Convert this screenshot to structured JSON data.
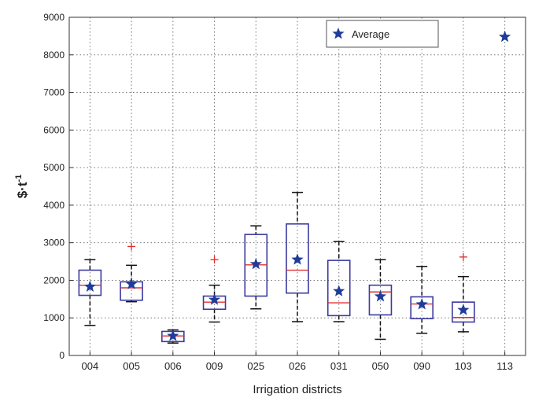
{
  "chart_data": {
    "type": "boxplot",
    "xlabel": "Irrigation districts",
    "ylabel": "$·t",
    "ylabel_superscript": "-1",
    "ylim": [
      0,
      9000
    ],
    "yticks": [
      0,
      1000,
      2000,
      3000,
      4000,
      5000,
      6000,
      7000,
      8000,
      9000
    ],
    "grid": true,
    "legend": {
      "label": "Average",
      "placement": "top-center"
    },
    "colors": {
      "box": "#3a3aa0",
      "median": "#e03030",
      "whisker": "#111111",
      "outlier": "#e03030",
      "average": "#1f3c9a"
    },
    "categories": [
      "004",
      "005",
      "006",
      "009",
      "025",
      "026",
      "031",
      "050",
      "090",
      "103",
      "113"
    ],
    "boxes": [
      {
        "whisker_low": 800,
        "q1": 1600,
        "median": 1870,
        "q3": 2270,
        "whisker_high": 2550,
        "average": 1830,
        "outliers": []
      },
      {
        "whisker_low": 1430,
        "q1": 1470,
        "median": 1800,
        "q3": 1960,
        "whisker_high": 2400,
        "average": 1900,
        "outliers": [
          2900
        ]
      },
      {
        "whisker_low": 330,
        "q1": 370,
        "median": 520,
        "q3": 640,
        "whisker_high": 680,
        "average": 520,
        "outliers": []
      },
      {
        "whisker_low": 890,
        "q1": 1230,
        "median": 1420,
        "q3": 1580,
        "whisker_high": 1870,
        "average": 1480,
        "outliers": [
          2550
        ]
      },
      {
        "whisker_low": 1240,
        "q1": 1580,
        "median": 2410,
        "q3": 3220,
        "whisker_high": 3450,
        "average": 2430,
        "outliers": []
      },
      {
        "whisker_low": 900,
        "q1": 1660,
        "median": 2270,
        "q3": 3500,
        "whisker_high": 4340,
        "average": 2550,
        "outliers": []
      },
      {
        "whisker_low": 900,
        "q1": 1060,
        "median": 1400,
        "q3": 2530,
        "whisker_high": 3030,
        "average": 1710,
        "outliers": []
      },
      {
        "whisker_low": 430,
        "q1": 1080,
        "median": 1690,
        "q3": 1870,
        "whisker_high": 2550,
        "average": 1570,
        "outliers": []
      },
      {
        "whisker_low": 590,
        "q1": 980,
        "median": 1370,
        "q3": 1560,
        "whisker_high": 2370,
        "average": 1360,
        "outliers": []
      },
      {
        "whisker_low": 630,
        "q1": 890,
        "median": 1010,
        "q3": 1420,
        "whisker_high": 2100,
        "average": 1210,
        "outliers": [
          2620
        ]
      },
      {
        "average": 8480,
        "outliers": []
      }
    ]
  }
}
